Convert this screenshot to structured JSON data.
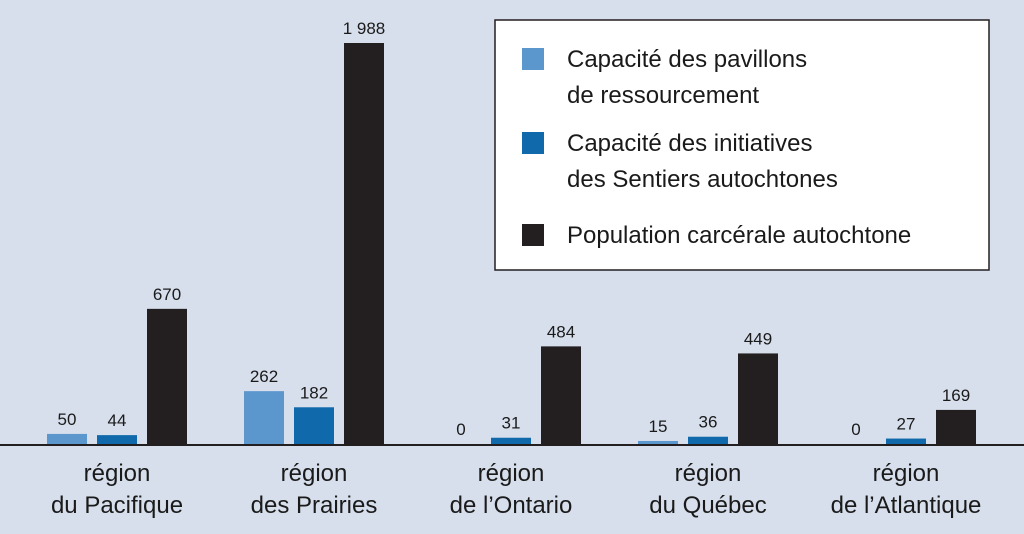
{
  "chart_data": {
    "type": "bar",
    "title": "",
    "xlabel": "",
    "ylabel": "",
    "ylim": [
      0,
      1988
    ],
    "grid": false,
    "legend_position": "top-right",
    "categories": [
      [
        "région",
        "du Pacifique"
      ],
      [
        "région",
        "des Prairies"
      ],
      [
        "région",
        "de l’Ontario"
      ],
      [
        "région",
        "du Québec"
      ],
      [
        "région",
        "de l’Atlantique"
      ]
    ],
    "series": [
      {
        "name": [
          "Capacité des pavillons",
          "de ressourcement"
        ],
        "color": "#5b96cd",
        "values": [
          50,
          262,
          0,
          15,
          0
        ],
        "labels": [
          "50",
          "262",
          "0",
          "15",
          "0"
        ]
      },
      {
        "name": [
          "Capacité des initiatives",
          "des Sentiers autochtones"
        ],
        "color": "#0f69aa",
        "values": [
          44,
          182,
          31,
          36,
          27
        ],
        "labels": [
          "44",
          "182",
          "31",
          "36",
          "27"
        ]
      },
      {
        "name": [
          "Population carcérale autochtone"
        ],
        "color": "#231f20",
        "values": [
          670,
          1988,
          484,
          449,
          169
        ],
        "labels": [
          "670",
          "1 988",
          "484",
          "449",
          "169"
        ]
      }
    ]
  }
}
